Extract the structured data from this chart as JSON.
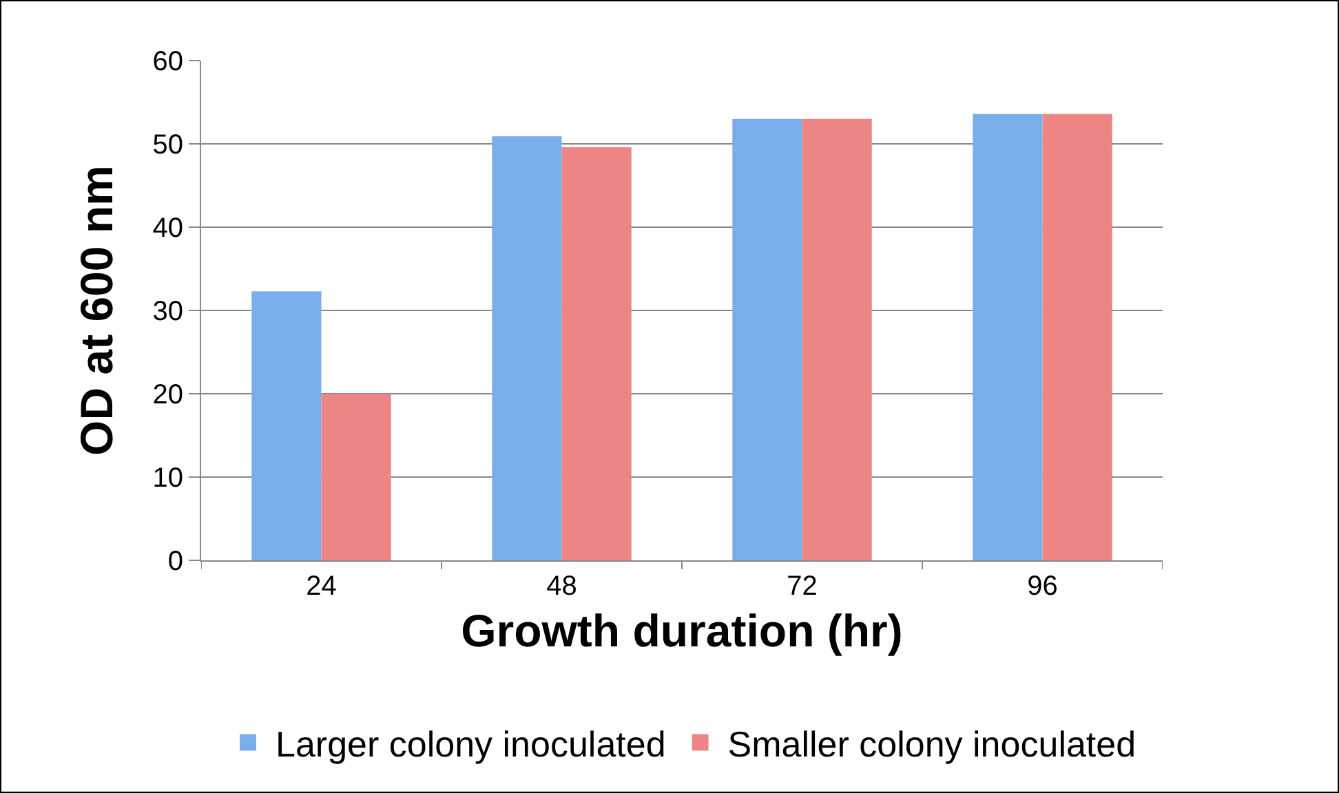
{
  "chart_data": {
    "type": "bar",
    "xlabel": "Growth duration (hr)",
    "ylabel": "OD at 600 nm",
    "categories": [
      "24",
      "48",
      "72",
      "96"
    ],
    "series": [
      {
        "name": "Larger colony inoculated",
        "color": "#7aaeea",
        "values": [
          32.3,
          50.9,
          53.0,
          53.6
        ]
      },
      {
        "name": "Smaller colony inoculated",
        "color": "#ec8583",
        "values": [
          20.0,
          49.6,
          53.0,
          53.6
        ]
      }
    ],
    "ylim": [
      0,
      60
    ],
    "yticks": [
      0,
      10,
      20,
      30,
      40,
      50,
      60
    ],
    "grid": "y",
    "legend": "bottom"
  }
}
